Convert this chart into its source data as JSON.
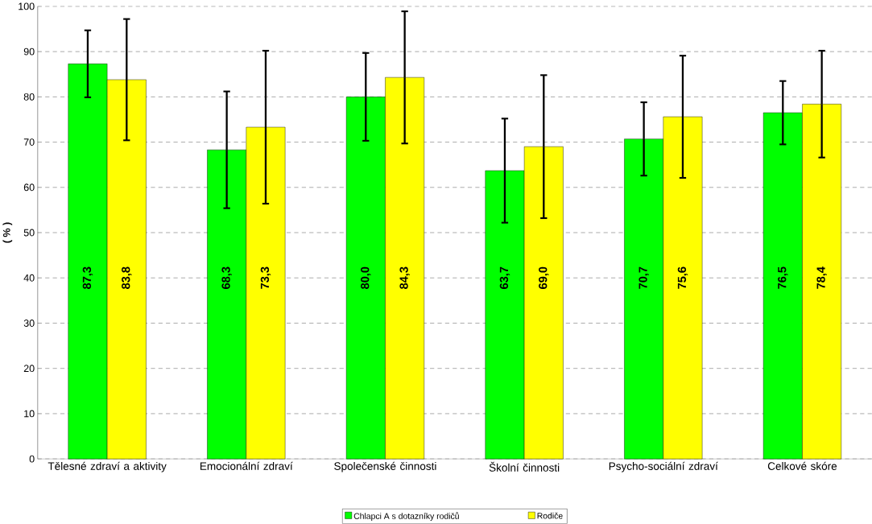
{
  "chart_data": {
    "type": "bar",
    "ylabel": "( % )",
    "categories": [
      "Tělesné zdraví a aktivity",
      "Emocionální zdraví",
      "Společenské činnosti",
      "Školní činnosti",
      "Psycho-sociální zdraví",
      "Celkové skóre"
    ],
    "series": [
      {
        "name": "Chlapci A s dotazníky rodičů",
        "color": "#00ff00",
        "values": [
          87.3,
          68.3,
          80.0,
          63.7,
          70.7,
          76.5
        ],
        "errors": [
          7.4,
          12.9,
          9.7,
          11.5,
          8.1,
          7.0
        ],
        "value_labels": [
          "87,3",
          "68,3",
          "80,0",
          "63,7",
          "70,7",
          "76,5"
        ]
      },
      {
        "name": "Rodiče",
        "color": "#ffff00",
        "values": [
          83.8,
          73.3,
          84.3,
          69.0,
          75.6,
          78.4
        ],
        "errors": [
          13.4,
          16.9,
          14.6,
          15.8,
          13.5,
          11.8
        ],
        "value_labels": [
          "83,8",
          "73,3",
          "84,3",
          "69,0",
          "75,6",
          "78,4"
        ]
      }
    ],
    "ylim": [
      0,
      100
    ],
    "yticks": [
      0,
      10,
      20,
      30,
      40,
      50,
      60,
      70,
      80,
      90,
      100
    ],
    "grid": "y",
    "legend": "bottom"
  }
}
